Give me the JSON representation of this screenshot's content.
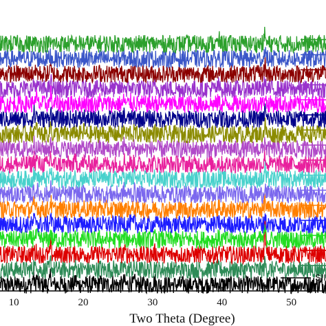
{
  "chart_data": {
    "type": "line",
    "title": "",
    "xlabel": "Two Theta (Degree)",
    "ylabel": "",
    "xlim": [
      8,
      55
    ],
    "x_ticks": [
      10,
      20,
      30,
      40,
      50
    ],
    "y_ticks_visible": false,
    "grid": false,
    "legend_position": "right",
    "visible_legend_text": "SII",
    "series": [
      {
        "color": "#000000",
        "offset": 0,
        "label": "SII",
        "peaks": [
          [
            12.8,
            0.95
          ],
          [
            13.3,
            0.7
          ],
          [
            15.3,
            1.0
          ],
          [
            18.9,
            0.55
          ],
          [
            20.1,
            0.35
          ],
          [
            22.4,
            0.42
          ],
          [
            24.3,
            0.25
          ],
          [
            25.9,
            0.4
          ],
          [
            26.8,
            0.35
          ],
          [
            27.4,
            0.25
          ],
          [
            30.3,
            0.45
          ],
          [
            34.6,
            0.12
          ],
          [
            38.2,
            0.18
          ],
          [
            39.5,
            0.1
          ],
          [
            41.4,
            0.15
          ],
          [
            42.8,
            0.1
          ],
          [
            46.5,
            0.1
          ],
          [
            50.2,
            0.08
          ]
        ]
      },
      {
        "color": "#2e8b57",
        "offset": 1,
        "peaks": [
          [
            12.9,
            0.5
          ],
          [
            13.3,
            0.7
          ],
          [
            15.3,
            0.85
          ],
          [
            18.9,
            0.35
          ],
          [
            20.1,
            0.2
          ],
          [
            22.4,
            0.3
          ],
          [
            24.3,
            0.15
          ],
          [
            25.9,
            0.3
          ],
          [
            26.8,
            0.2
          ],
          [
            27.4,
            0.2
          ],
          [
            30.3,
            0.3
          ],
          [
            39.4,
            0.15
          ],
          [
            46.2,
            0.6
          ]
        ]
      },
      {
        "color": "#dd0000",
        "offset": 2,
        "peaks": [
          [
            12.9,
            0.5
          ],
          [
            13.3,
            0.4
          ],
          [
            15.3,
            0.9
          ],
          [
            18.9,
            0.35
          ],
          [
            20.1,
            0.2
          ],
          [
            22.4,
            0.25
          ],
          [
            25.9,
            0.35
          ],
          [
            26.8,
            0.2
          ],
          [
            27.4,
            0.3
          ],
          [
            30.3,
            0.25
          ],
          [
            39.5,
            0.25
          ],
          [
            46.2,
            2.5
          ]
        ]
      },
      {
        "color": "#22dd22",
        "offset": 3,
        "peaks": [
          [
            12.9,
            0.5
          ],
          [
            13.3,
            0.5
          ],
          [
            15.3,
            0.8
          ],
          [
            18.9,
            0.3
          ],
          [
            20.1,
            0.2
          ],
          [
            22.4,
            0.2
          ],
          [
            25.9,
            0.3
          ],
          [
            26.8,
            0.2
          ],
          [
            27.4,
            0.2
          ],
          [
            30.3,
            0.2
          ],
          [
            39.5,
            0.2
          ],
          [
            46.2,
            1.0
          ]
        ]
      },
      {
        "color": "#1c1cff",
        "offset": 4,
        "peaks": [
          [
            12.9,
            0.5
          ],
          [
            13.3,
            0.5
          ],
          [
            15.3,
            0.9
          ],
          [
            18.9,
            0.35
          ],
          [
            20.1,
            0.25
          ],
          [
            22.4,
            0.25
          ],
          [
            25.9,
            0.35
          ],
          [
            26.8,
            0.2
          ],
          [
            27.4,
            0.25
          ],
          [
            30.3,
            0.2
          ],
          [
            39.5,
            0.25
          ],
          [
            46.2,
            1.0
          ]
        ]
      },
      {
        "color": "#ff7f00",
        "offset": 5,
        "peaks": [
          [
            12.9,
            0.5
          ],
          [
            13.3,
            0.5
          ],
          [
            15.3,
            0.85
          ],
          [
            18.9,
            0.35
          ],
          [
            20.1,
            0.25
          ],
          [
            22.4,
            0.3
          ],
          [
            25.9,
            0.35
          ],
          [
            26.8,
            0.2
          ],
          [
            27.4,
            0.25
          ],
          [
            30.3,
            0.2
          ],
          [
            39.5,
            0.3
          ],
          [
            46.2,
            1.0
          ]
        ]
      },
      {
        "color": "#7b68ee",
        "offset": 6,
        "peaks": [
          [
            12.9,
            0.5
          ],
          [
            13.3,
            0.6
          ],
          [
            15.3,
            0.95
          ],
          [
            18.9,
            0.35
          ],
          [
            20.1,
            0.25
          ],
          [
            22.4,
            0.3
          ],
          [
            25.9,
            0.4
          ],
          [
            26.8,
            0.25
          ],
          [
            27.4,
            0.3
          ],
          [
            30.3,
            0.25
          ],
          [
            39.5,
            0.3
          ],
          [
            46.2,
            1.0
          ]
        ]
      },
      {
        "color": "#48d1cc",
        "offset": 7,
        "peaks": [
          [
            12.9,
            0.6
          ],
          [
            13.3,
            0.6
          ],
          [
            15.3,
            1.0
          ],
          [
            18.9,
            0.4
          ],
          [
            20.1,
            0.3
          ],
          [
            22.4,
            0.3
          ],
          [
            25.9,
            0.4
          ],
          [
            26.8,
            0.25
          ],
          [
            27.4,
            0.3
          ],
          [
            30.3,
            0.25
          ],
          [
            39.5,
            0.3
          ],
          [
            46.2,
            1.0
          ]
        ]
      },
      {
        "color": "#e8209d",
        "offset": 8,
        "peaks": [
          [
            12.9,
            0.6
          ],
          [
            13.3,
            0.6
          ],
          [
            15.3,
            0.95
          ],
          [
            18.9,
            0.4
          ],
          [
            20.1,
            0.3
          ],
          [
            22.4,
            0.3
          ],
          [
            25.9,
            0.4
          ],
          [
            26.8,
            0.25
          ],
          [
            27.4,
            0.3
          ],
          [
            30.3,
            0.25
          ],
          [
            39.5,
            0.3
          ],
          [
            46.2,
            1.0
          ]
        ]
      },
      {
        "color": "#b049c8",
        "offset": 9,
        "peaks": [
          [
            12.9,
            0.6
          ],
          [
            13.3,
            0.6
          ],
          [
            15.3,
            0.95
          ],
          [
            18.9,
            0.4
          ],
          [
            20.1,
            0.3
          ],
          [
            22.4,
            0.3
          ],
          [
            25.9,
            0.4
          ],
          [
            26.8,
            0.25
          ],
          [
            27.4,
            0.3
          ],
          [
            30.3,
            0.25
          ],
          [
            39.5,
            0.3
          ],
          [
            46.2,
            1.0
          ]
        ]
      },
      {
        "color": "#8b8b00",
        "offset": 10,
        "peaks": [
          [
            12.9,
            0.6
          ],
          [
            13.3,
            0.6
          ],
          [
            15.3,
            0.95
          ],
          [
            18.9,
            0.4
          ],
          [
            20.1,
            0.3
          ],
          [
            22.4,
            0.3
          ],
          [
            25.9,
            0.4
          ],
          [
            26.8,
            0.25
          ],
          [
            27.4,
            0.3
          ],
          [
            30.3,
            0.25
          ],
          [
            39.5,
            0.3
          ],
          [
            46.2,
            1.0
          ]
        ]
      },
      {
        "color": "#00008b",
        "offset": 11,
        "peaks": [
          [
            12.9,
            0.6
          ],
          [
            13.3,
            0.6
          ],
          [
            15.3,
            1.0
          ],
          [
            18.9,
            0.4
          ],
          [
            20.1,
            0.3
          ],
          [
            22.4,
            0.3
          ],
          [
            25.9,
            0.45
          ],
          [
            26.8,
            0.25
          ],
          [
            27.4,
            0.3
          ],
          [
            30.3,
            0.25
          ],
          [
            39.5,
            0.35
          ],
          [
            46.2,
            1.0
          ]
        ]
      },
      {
        "color": "#ff00ff",
        "offset": 12,
        "peaks": [
          [
            12.9,
            0.6
          ],
          [
            13.3,
            0.6
          ],
          [
            15.3,
            1.0
          ],
          [
            18.9,
            0.4
          ],
          [
            20.1,
            0.3
          ],
          [
            22.4,
            0.3
          ],
          [
            25.9,
            0.45
          ],
          [
            26.8,
            0.25
          ],
          [
            27.4,
            0.3
          ],
          [
            30.3,
            0.25
          ],
          [
            39.5,
            0.35
          ],
          [
            46.2,
            1.0
          ]
        ]
      },
      {
        "color": "#9932cc",
        "offset": 13,
        "peaks": [
          [
            12.9,
            0.6
          ],
          [
            13.3,
            0.7
          ],
          [
            15.3,
            1.0
          ],
          [
            18.9,
            0.4
          ],
          [
            20.1,
            0.35
          ],
          [
            22.4,
            0.3
          ],
          [
            25.9,
            0.45
          ],
          [
            26.8,
            0.3
          ],
          [
            27.4,
            0.3
          ],
          [
            30.3,
            0.25
          ],
          [
            39.5,
            0.35
          ],
          [
            46.2,
            1.0
          ]
        ]
      },
      {
        "color": "#8b0000",
        "offset": 14,
        "peaks": [
          [
            12.9,
            0.4
          ],
          [
            13.3,
            0.3
          ],
          [
            15.3,
            0.55
          ],
          [
            18.9,
            0.2
          ],
          [
            20.1,
            0.15
          ],
          [
            22.4,
            0.15
          ],
          [
            25.9,
            0.25
          ],
          [
            27.4,
            0.15
          ],
          [
            39.5,
            0.3
          ],
          [
            46.2,
            1.0
          ]
        ]
      },
      {
        "color": "#3a56c8",
        "offset": 15,
        "peaks": [
          [
            13.0,
            0.3
          ],
          [
            15.3,
            0.4
          ],
          [
            18.9,
            0.15
          ],
          [
            20.1,
            0.1
          ],
          [
            25.9,
            0.15
          ],
          [
            39.5,
            0.2
          ],
          [
            46.2,
            1.0
          ]
        ]
      },
      {
        "color": "#2ca02c",
        "offset": 16,
        "peaks": [
          [
            39.6,
            0.35
          ],
          [
            46.2,
            1.0
          ]
        ]
      }
    ]
  }
}
